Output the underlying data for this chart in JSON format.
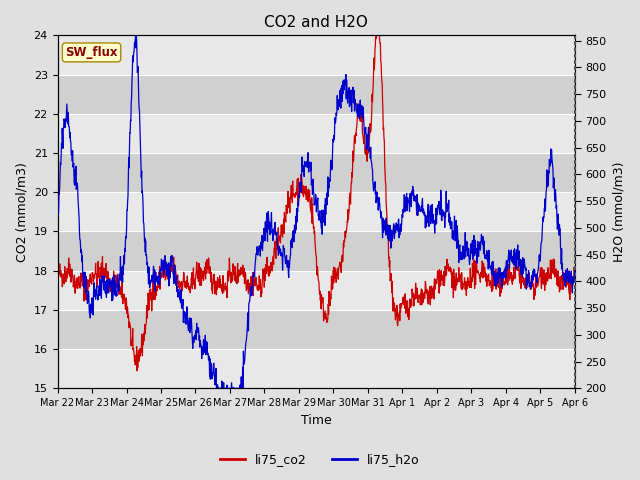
{
  "title": "CO2 and H2O",
  "xlabel": "Time",
  "ylabel_left": "CO2 (mmol/m3)",
  "ylabel_right": "H2O (mmol/m3)",
  "ylim_left": [
    15.0,
    24.0
  ],
  "ylim_right": [
    200,
    860
  ],
  "yticks_left": [
    15.0,
    16.0,
    17.0,
    18.0,
    19.0,
    20.0,
    21.0,
    22.0,
    23.0,
    24.0
  ],
  "yticks_right": [
    200,
    250,
    300,
    350,
    400,
    450,
    500,
    550,
    600,
    650,
    700,
    750,
    800,
    850
  ],
  "xtick_labels": [
    "Mar 22",
    "Mar 23",
    "Mar 24",
    "Mar 25",
    "Mar 26",
    "Mar 27",
    "Mar 28",
    "Mar 29",
    "Mar 30",
    "Mar 31",
    "Apr 1",
    "Apr 2",
    "Apr 3",
    "Apr 4",
    "Apr 5",
    "Apr 6"
  ],
  "color_co2": "#cc0000",
  "color_h2o": "#0000cc",
  "legend_labels": [
    "li75_co2",
    "li75_h2o"
  ],
  "sw_flux_label": "SW_flux",
  "background_color": "#e0e0e0",
  "plot_bg_color": "#d0d0d0",
  "grid_color": "#ffffff",
  "band_color_light": "#e8e8e8",
  "band_color_dark": "#d0d0d0",
  "title_fontsize": 11
}
